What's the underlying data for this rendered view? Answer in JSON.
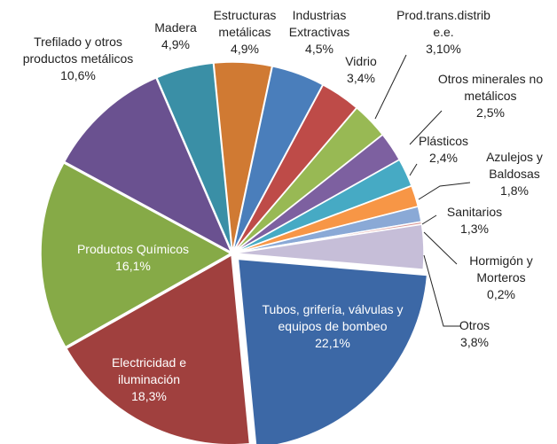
{
  "chart_data": {
    "type": "pie",
    "categories": [
      "Industrias Extractivas",
      "Vidrio",
      "Prod.trans.distrib e.e.",
      "Otros minerales no metálicos",
      "Plásticos",
      "Azulejos y Baldosas",
      "Sanitarios",
      "Hormigón y Morteros",
      "Otros",
      "Tubos, grifería, válvulas y equipos de bombeo",
      "Electricidad e iluminación",
      "Productos Químicos",
      "Trefilado y otros productos metálicos",
      "Madera",
      "Estructuras metálicas"
    ],
    "values": [
      4.5,
      3.4,
      3.1,
      2.5,
      2.4,
      1.8,
      1.3,
      0.2,
      3.8,
      22.1,
      18.3,
      16.1,
      10.6,
      4.9,
      4.9
    ],
    "value_labels": [
      "4,5%",
      "3,4%",
      "3,10%",
      "2,5%",
      "2,4%",
      "1,8%",
      "1,3%",
      "0,2%",
      "3,8%",
      "22,1%",
      "18,3%",
      "16,1%",
      "10,6%",
      "4,9%",
      "4,9%"
    ],
    "colors": [
      "#4a7ebb",
      "#be4b48",
      "#98b954",
      "#7d60a0",
      "#46aac4",
      "#f79646",
      "#8aa9d6",
      "#d99694",
      "#c6bed8",
      "#3c68a6",
      "#a0403e",
      "#86aa47",
      "#6a5190",
      "#3a8fa6",
      "#d07a33"
    ]
  }
}
